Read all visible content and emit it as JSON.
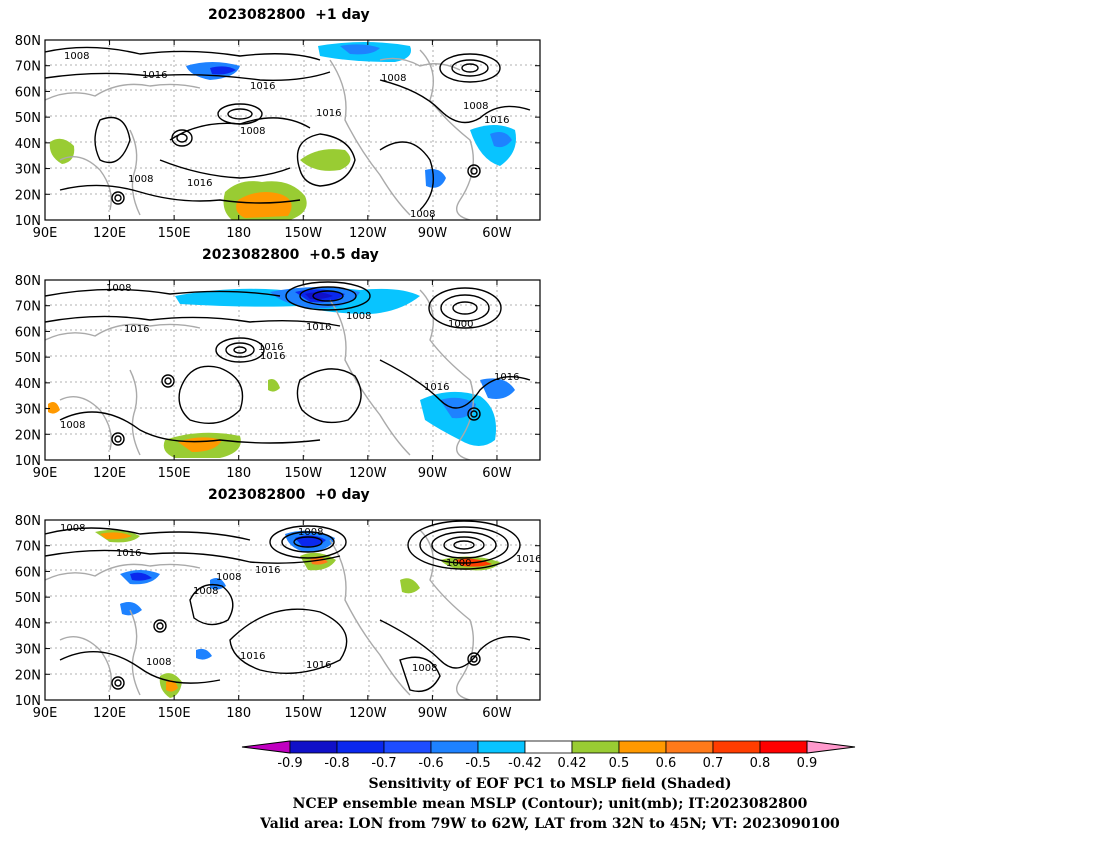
{
  "panels": [
    {
      "title": "2023082800  +1 day"
    },
    {
      "title": "2023082800  +0.5 day"
    },
    {
      "title": "2023082800  +0 day"
    }
  ],
  "axes": {
    "lat_labels": [
      "80N",
      "70N",
      "60N",
      "50N",
      "40N",
      "30N",
      "20N",
      "10N"
    ],
    "lon_labels": [
      "90E",
      "120E",
      "150E",
      "180",
      "150W",
      "120W",
      "90W",
      "60W"
    ]
  },
  "contour_labels": {
    "p1": [
      "1008",
      "1016",
      "1016",
      "1016",
      "1008",
      "1008",
      "1016",
      "1008",
      "1016",
      "1008",
      "1008"
    ],
    "p2": [
      "1008",
      "1016",
      "1016",
      "1016",
      "1008",
      "1000",
      "1016",
      "1016",
      "1008"
    ],
    "p3": [
      "1008",
      "1016",
      "1016",
      "1008",
      "1008",
      "1000",
      "1016",
      "1016",
      "1016",
      "1008",
      "1008"
    ]
  },
  "colorbar": {
    "tick_labels": [
      "-0.9",
      "-0.8",
      "-0.7",
      "-0.6",
      "-0.5",
      "-0.42",
      "0.42",
      "0.5",
      "0.6",
      "0.7",
      "0.8",
      "0.9"
    ],
    "colors": [
      "#c000c0",
      "#1010c8",
      "#0a28ee",
      "#1e4cff",
      "#1e82ff",
      "#08c4ff",
      "#ffffff",
      "#99cc33",
      "#ff9900",
      "#ff7a1a",
      "#ff3d00",
      "#ff0000",
      "#ff99cc"
    ]
  },
  "caption": {
    "line1": "Sensitivity of EOF PC1 to MSLP field (Shaded)",
    "line2": "NCEP ensemble mean MSLP (Contour); unit(mb); IT:2023082800",
    "line3": "Valid area: LON from 79W to 62W, LAT from 32N to 45N; VT: 2023090100"
  }
}
